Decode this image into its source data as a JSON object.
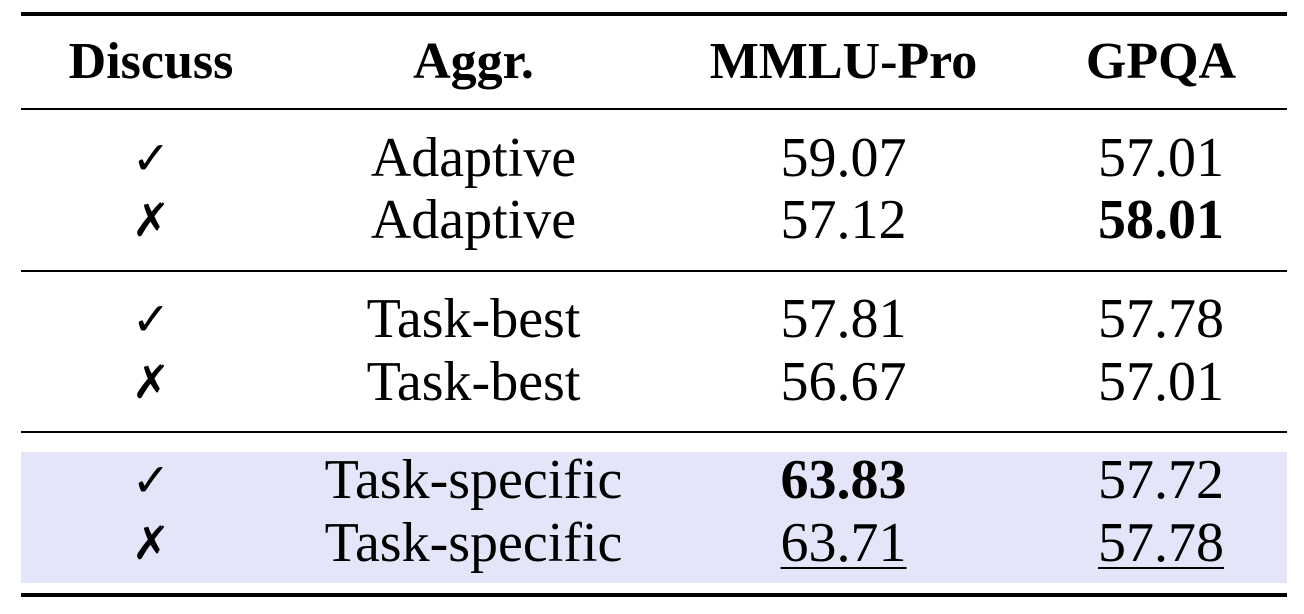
{
  "table": {
    "headers": {
      "discuss": "Discuss",
      "aggr": "Aggr.",
      "mmlu_pro": "MMLU-Pro",
      "gpqa": "GPQA"
    },
    "rows": [
      {
        "discuss": "✓",
        "aggr": "Adaptive",
        "mmlu_pro": "59.07",
        "gpqa": "57.01"
      },
      {
        "discuss": "✗",
        "aggr": "Adaptive",
        "mmlu_pro": "57.12",
        "gpqa": "58.01"
      },
      {
        "discuss": "✓",
        "aggr": "Task-best",
        "mmlu_pro": "57.81",
        "gpqa": "57.78"
      },
      {
        "discuss": "✗",
        "aggr": "Task-best",
        "mmlu_pro": "56.67",
        "gpqa": "57.01"
      },
      {
        "discuss": "✓",
        "aggr": "Task-specific",
        "mmlu_pro": "63.83",
        "gpqa": "57.72"
      },
      {
        "discuss": "✗",
        "aggr": "Task-specific",
        "mmlu_pro": "63.71",
        "gpqa": "57.78"
      }
    ],
    "highlight_color": "#e5e5f9"
  }
}
